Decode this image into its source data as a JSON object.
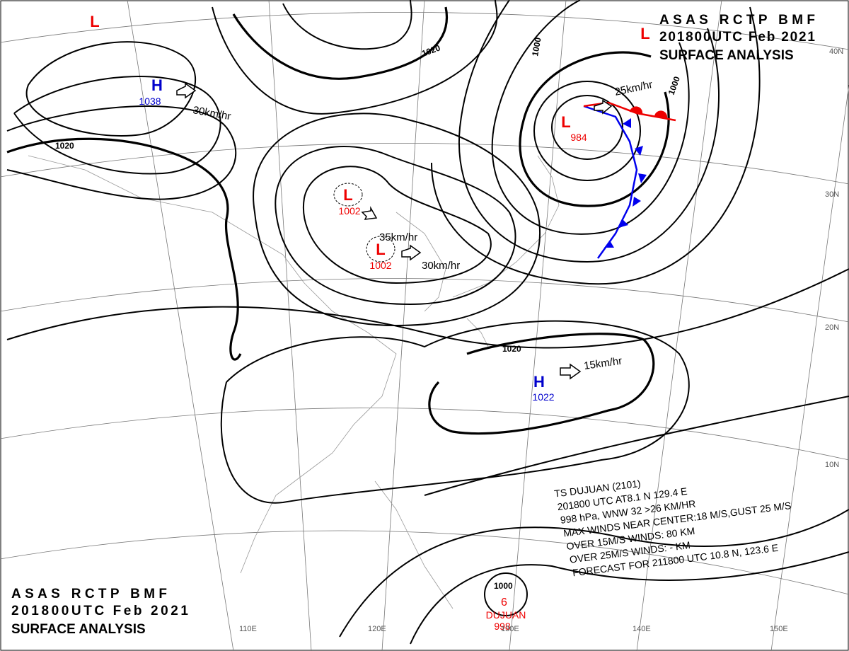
{
  "header_top": {
    "lines": [
      "ASAS RCTP BMF",
      "201800UTC Feb 2021",
      "SURFACE ANALYSIS"
    ]
  },
  "header_bottom": {
    "lines": [
      "ASAS RCTP BMF",
      "201800UTC Feb 2021",
      "SURFACE ANALYSIS"
    ]
  },
  "pressure_centers": [
    {
      "letter": "H",
      "pressure": "1038"
    },
    {
      "letter": "L",
      "pressure": "1002"
    },
    {
      "letter": "L",
      "pressure": "1002"
    },
    {
      "letter": "L",
      "pressure": "984"
    },
    {
      "letter": "H",
      "pressure": "1022"
    },
    {
      "letter": "L"
    },
    {
      "letter": "L"
    }
  ],
  "motions": [
    "30km/hr",
    "35km/hr",
    "30km/hr",
    "25km/hr",
    "15km/hr"
  ],
  "isobar_labels": [
    "1020",
    "1020",
    "1020",
    "1000",
    "1000",
    "1000"
  ],
  "typhoon": {
    "name": "DUJUAN",
    "pressure": "998",
    "info": [
      "TS DUJUAN (2101)",
      "201800 UTC AT8.1 N 129.4 E",
      "998 hPa, WNW 32 >26 KM/HR",
      "MAX WINDS NEAR CENTER:18 M/S,GUST 25 M/S",
      "OVER 15M/S WINDS: 80 KM",
      "OVER 25M/S WINDS: - KM",
      "FORECAST FOR 211800 UTC 10.8 N, 123.6 E"
    ]
  },
  "graticule": {
    "lat": [
      "40N",
      "30N",
      "20N",
      "10N"
    ],
    "lon": [
      "110E",
      "120E",
      "130E",
      "140E",
      "150E"
    ]
  }
}
